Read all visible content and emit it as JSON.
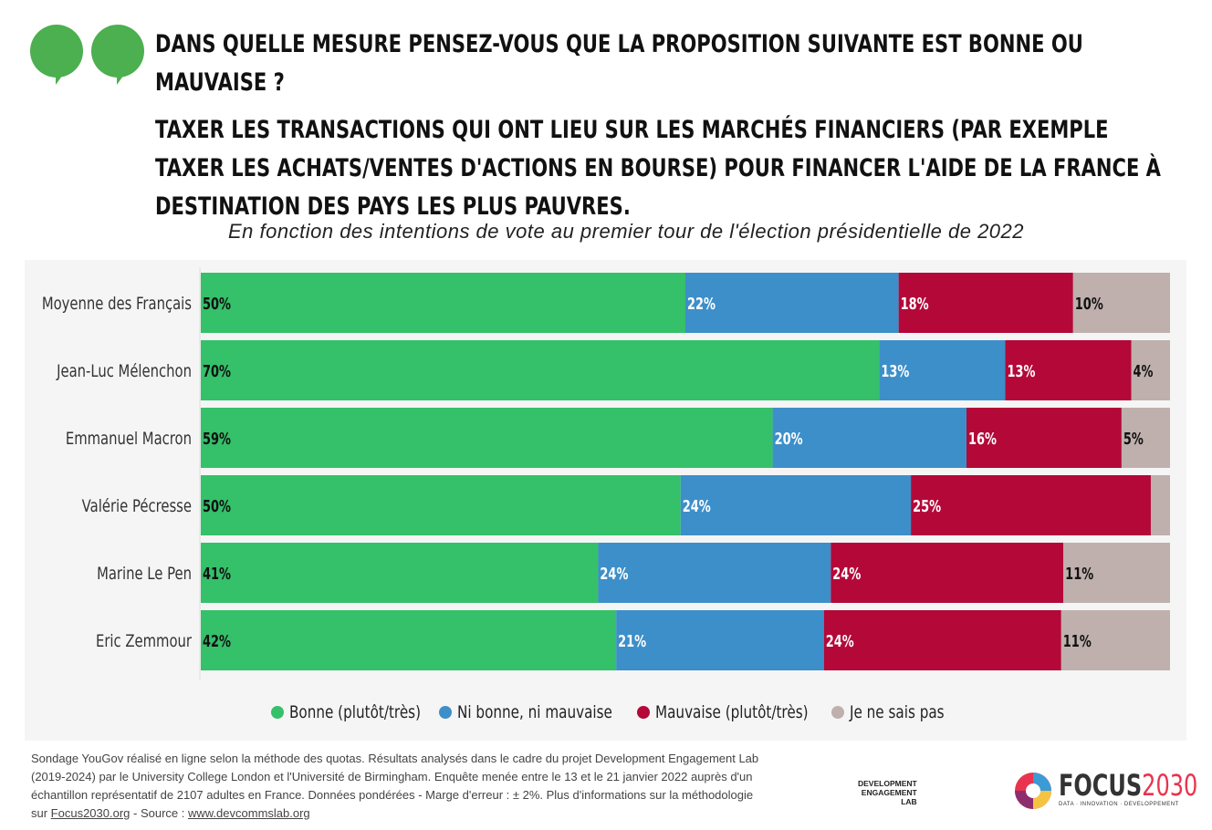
{
  "title": {
    "line1": "Dans quelle mesure pensez-vous que la proposition suivante est bonne ou mauvaise ?",
    "line2": "Taxer les transactions qui ont lieu sur les marchés financiers (par exemple taxer les achats/ventes d'actions en bourse) pour financer l'aide de la France à destination des pays les plus pauvres."
  },
  "chart_data": {
    "type": "bar",
    "orientation": "horizontal",
    "stacked": true,
    "subtitle": "En fonction des intentions de vote au premier tour de l'élection présidentielle de 2022",
    "categories": [
      "Moyenne des Français",
      "Jean-Luc Mélenchon",
      "Emmanuel Macron",
      "Valérie Pécresse",
      "Marine Le Pen",
      "Eric Zemmour"
    ],
    "series": [
      {
        "name": "Bonne (plutôt/très)",
        "color": "#35c06a",
        "values": [
          50,
          70,
          59,
          50,
          41,
          42
        ],
        "labels": [
          "50%",
          "70%",
          "59%",
          "50%",
          "41%",
          "42%"
        ]
      },
      {
        "name": "Ni bonne, ni mauvaise",
        "color": "#3d8fc9",
        "values": [
          22,
          13,
          20,
          24,
          24,
          21
        ],
        "labels": [
          "22%",
          "13%",
          "20%",
          "24%",
          "24%",
          "21%"
        ]
      },
      {
        "name": "Mauvaise (plutôt/très)",
        "color": "#b30838",
        "values": [
          18,
          13,
          16,
          25,
          24,
          24
        ],
        "labels": [
          "18%",
          "13%",
          "16%",
          "25%",
          "24%",
          "24%"
        ]
      },
      {
        "name": "Je ne sais pas",
        "color": "#bfb0ad",
        "values": [
          10,
          4,
          5,
          2,
          11,
          11
        ],
        "labels": [
          "10%",
          "4%",
          "5%",
          "",
          "11%",
          "11%"
        ]
      }
    ],
    "legend": "bottom"
  },
  "footer": {
    "text": "Sondage YouGov réalisé en ligne selon la méthode des quotas. Résultats analysés dans le cadre du projet Development Engagement Lab (2019-2024) par le University College London et l'Université de Birmingham. Enquête menée entre le 13 et le 21 janvier 2022 auprès d'un échantillon représentatif de 2107 adultes en France. Données pondérées - Marge d'erreur : ± 2%. Plus d'informations sur la méthodologie sur ",
    "link1": "Focus2030.org",
    "mid": " - Source : ",
    "link2": "www.devcommslab.org"
  },
  "logos": {
    "del": "DEVELOPMENT ENGAGEMENT LAB",
    "focus_a": "FOCUS",
    "focus_b": "2030",
    "focus_tag": "DATA · INNOVATION · DEVELOPPEMENT"
  }
}
